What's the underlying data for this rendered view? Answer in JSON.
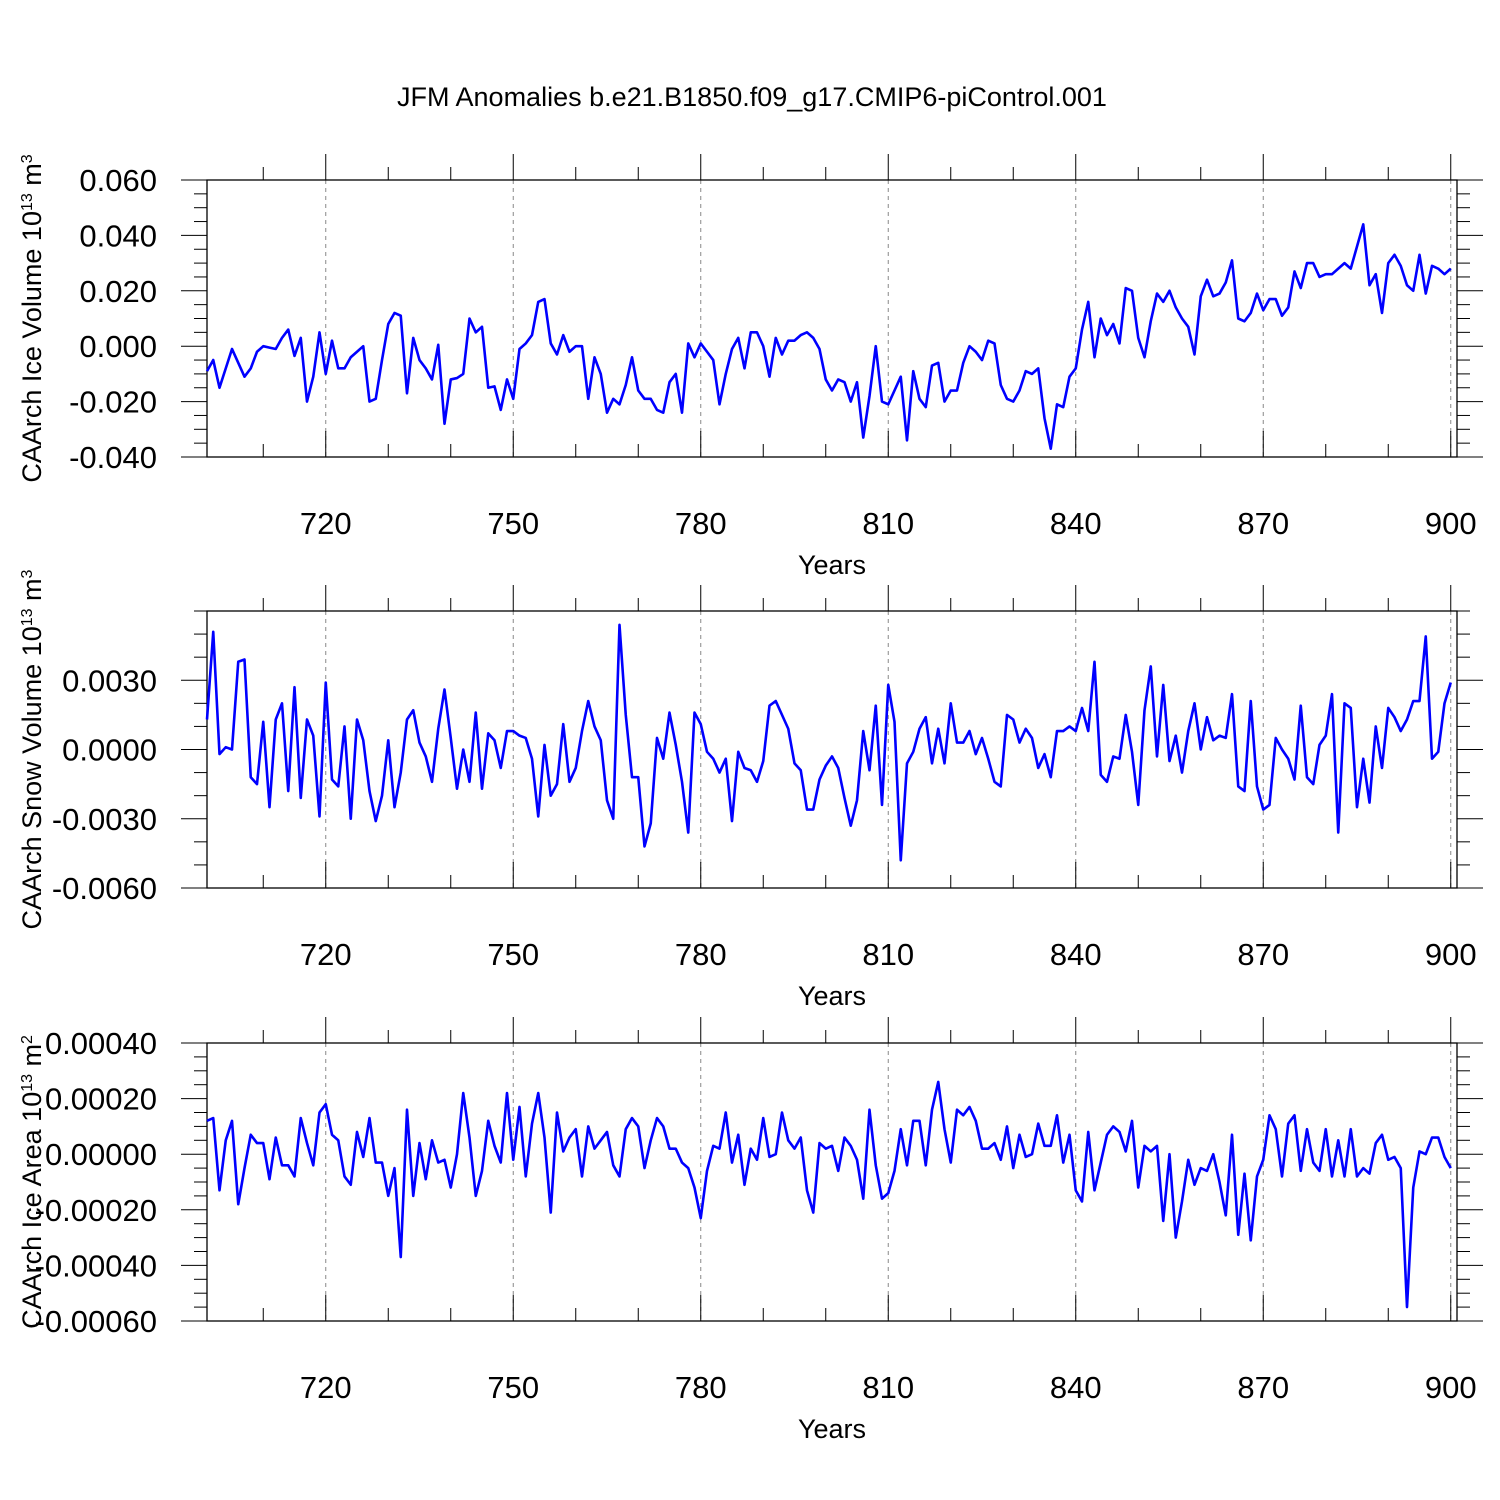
{
  "title": "JFM Anomalies b.e21.B1850.f09_g17.CMIP6-piControl.001",
  "line_color": "#0000ff",
  "grid_color": "#888888",
  "chart_data": [
    {
      "type": "line",
      "ylabel": "CAArch Ice Volume 10",
      "ylabel_sup": "13",
      "ylabel_unit": "m",
      "ylabel_unit_sup": "3",
      "xlabel": "Years",
      "xlim": [
        701,
        901
      ],
      "ylim": [
        -0.04,
        0.06
      ],
      "yticks": [
        -0.04,
        -0.02,
        0.0,
        0.02,
        0.04,
        0.06
      ],
      "ytick_labels": [
        "-0.040",
        "-0.020",
        "0.000",
        "0.020",
        "0.040",
        "0.060"
      ],
      "yminor_step": 0.005,
      "xticks": [
        720,
        750,
        780,
        810,
        840,
        870,
        900
      ],
      "xtick_labels": [
        "720",
        "750",
        "780",
        "810",
        "840",
        "870",
        "900"
      ],
      "xminor_step": 10,
      "x_start": 701,
      "values": [
        -0.009,
        -0.005,
        -0.015,
        -0.008,
        -0.001,
        -0.006,
        -0.011,
        -0.008,
        -0.002,
        0.0,
        -0.0005,
        -0.001,
        0.003,
        0.006,
        -0.0035,
        0.003,
        -0.02,
        -0.011,
        0.005,
        -0.01,
        0.002,
        -0.008,
        -0.008,
        -0.004,
        -0.002,
        0.0,
        -0.02,
        -0.019,
        -0.005,
        0.008,
        0.012,
        0.011,
        -0.017,
        0.003,
        -0.005,
        -0.008,
        -0.012,
        0.0005,
        -0.028,
        -0.012,
        -0.0115,
        -0.01,
        0.01,
        0.005,
        0.007,
        -0.015,
        -0.0145,
        -0.023,
        -0.012,
        -0.019,
        -0.001,
        0.001,
        0.004,
        0.016,
        0.017,
        0.001,
        -0.003,
        0.004,
        -0.002,
        0.0,
        0.0,
        -0.019,
        -0.004,
        -0.01,
        -0.024,
        -0.019,
        -0.021,
        -0.014,
        -0.004,
        -0.016,
        -0.019,
        -0.019,
        -0.023,
        -0.024,
        -0.013,
        -0.01,
        -0.024,
        0.001,
        -0.004,
        0.001,
        -0.002,
        -0.005,
        -0.021,
        -0.01,
        -0.001,
        0.003,
        -0.008,
        0.005,
        0.005,
        0.0,
        -0.011,
        0.003,
        -0.003,
        0.002,
        0.002,
        0.004,
        0.005,
        0.003,
        -0.001,
        -0.012,
        -0.016,
        -0.012,
        -0.013,
        -0.02,
        -0.013,
        -0.033,
        -0.018,
        0.0,
        -0.02,
        -0.021,
        -0.016,
        -0.011,
        -0.034,
        -0.009,
        -0.019,
        -0.022,
        -0.007,
        -0.006,
        -0.02,
        -0.016,
        -0.016,
        -0.006,
        0.0,
        -0.002,
        -0.005,
        0.002,
        0.001,
        -0.014,
        -0.019,
        -0.02,
        -0.016,
        -0.009,
        -0.01,
        -0.008,
        -0.026,
        -0.037,
        -0.021,
        -0.022,
        -0.011,
        -0.008,
        0.006,
        0.016,
        -0.004,
        0.01,
        0.004,
        0.008,
        0.001,
        0.021,
        0.02,
        0.003,
        -0.004,
        0.009,
        0.019,
        0.016,
        0.02,
        0.014,
        0.01,
        0.007,
        -0.003,
        0.018,
        0.024,
        0.018,
        0.019,
        0.023,
        0.031,
        0.01,
        0.009,
        0.012,
        0.019,
        0.013,
        0.017,
        0.017,
        0.011,
        0.014,
        0.027,
        0.021,
        0.03,
        0.03,
        0.025,
        0.026,
        0.026,
        0.028,
        0.03,
        0.028,
        0.036,
        0.044,
        0.022,
        0.026,
        0.012,
        0.03,
        0.033,
        0.029,
        0.022,
        0.02,
        0.033,
        0.019,
        0.029,
        0.028,
        0.026,
        0.028
      ]
    },
    {
      "type": "line",
      "ylabel": "CAArch Snow Volume 10",
      "ylabel_sup": "13",
      "ylabel_unit": "m",
      "ylabel_unit_sup": "3",
      "xlabel": "Years",
      "xlim": [
        701,
        901
      ],
      "ylim": [
        -0.006,
        0.006
      ],
      "yticks": [
        -0.006,
        -0.003,
        0.0,
        0.003
      ],
      "ytick_labels": [
        "-0.0060",
        "-0.0030",
        "0.0000",
        "0.0030"
      ],
      "yminor_step": 0.001,
      "xticks": [
        720,
        750,
        780,
        810,
        840,
        870,
        900
      ],
      "xtick_labels": [
        "720",
        "750",
        "780",
        "810",
        "840",
        "870",
        "900"
      ],
      "xminor_step": 10,
      "x_start": 701,
      "values": [
        0.0013,
        0.0051,
        -0.0002,
        0.0001,
        0.0,
        0.0038,
        0.0039,
        -0.0012,
        -0.0015,
        0.0012,
        -0.0025,
        0.0013,
        0.002,
        -0.0018,
        0.0027,
        -0.0021,
        0.0013,
        0.0006,
        -0.0029,
        0.0029,
        -0.0013,
        -0.0016,
        0.001,
        -0.003,
        0.0013,
        0.0004,
        -0.0018,
        -0.0031,
        -0.002,
        0.0004,
        -0.0025,
        -0.001,
        0.0013,
        0.0017,
        0.0003,
        -0.0003,
        -0.0014,
        0.0009,
        0.0026,
        0.0005,
        -0.0017,
        0.0,
        -0.0014,
        0.0016,
        -0.0017,
        0.0007,
        0.0004,
        -0.0008,
        0.0008,
        0.0008,
        0.0006,
        0.0005,
        -0.0004,
        -0.0029,
        0.0002,
        -0.002,
        -0.0015,
        0.0011,
        -0.0014,
        -0.0008,
        0.0008,
        0.0021,
        0.001,
        0.0004,
        -0.0022,
        -0.003,
        0.0054,
        0.0015,
        -0.0012,
        -0.0012,
        -0.0042,
        -0.0032,
        0.0005,
        -0.0004,
        0.0016,
        0.0002,
        -0.0014,
        -0.0036,
        0.0016,
        0.0011,
        -0.0001,
        -0.0004,
        -0.001,
        -0.0004,
        -0.0031,
        -0.0001,
        -0.0008,
        -0.0009,
        -0.0014,
        -0.0005,
        0.0019,
        0.0021,
        0.0015,
        0.0009,
        -0.0006,
        -0.0009,
        -0.0026,
        -0.0026,
        -0.0013,
        -0.0007,
        -0.0003,
        -0.0008,
        -0.0021,
        -0.0033,
        -0.0022,
        0.0008,
        -0.0009,
        0.0019,
        -0.0024,
        0.0028,
        0.0012,
        -0.0048,
        -0.0006,
        -0.0001,
        0.0009,
        0.0014,
        -0.0006,
        0.0009,
        -0.0006,
        0.002,
        0.0003,
        0.0003,
        0.0008,
        -0.0002,
        0.0005,
        -0.0004,
        -0.0014,
        -0.0016,
        0.0015,
        0.0013,
        0.0003,
        0.0009,
        0.0005,
        -0.0008,
        -0.0002,
        -0.0012,
        0.0008,
        0.0008,
        0.001,
        0.0008,
        0.0018,
        0.0008,
        0.0038,
        -0.0011,
        -0.0014,
        -0.0003,
        -0.0004,
        0.0015,
        -0.0001,
        -0.0024,
        0.0017,
        0.0036,
        -0.0003,
        0.0028,
        -0.0005,
        0.0006,
        -0.001,
        0.0008,
        0.002,
        0.0,
        0.0014,
        0.0004,
        0.0006,
        0.0005,
        0.0024,
        -0.0016,
        -0.0018,
        0.0021,
        -0.0016,
        -0.0026,
        -0.0024,
        0.0005,
        0.0,
        -0.0004,
        -0.0013,
        0.0019,
        -0.0012,
        -0.0015,
        0.0002,
        0.0006,
        0.0024,
        -0.0036,
        0.002,
        0.0018,
        -0.0025,
        -0.0004,
        -0.0023,
        0.001,
        -0.0008,
        0.0018,
        0.0014,
        0.0008,
        0.0013,
        0.0021,
        0.0021,
        0.0049,
        -0.0004,
        -0.0001,
        0.002,
        0.0029
      ]
    },
    {
      "type": "line",
      "ylabel": "CAArch Ice Area 10",
      "ylabel_sup": "13",
      "ylabel_unit": "m",
      "ylabel_unit_sup": "2",
      "xlabel": "Years",
      "xlim": [
        701,
        901
      ],
      "ylim": [
        -0.0006,
        0.0004
      ],
      "yticks": [
        -0.0006,
        -0.0004,
        -0.0002,
        0.0,
        0.0002,
        0.0004
      ],
      "ytick_labels": [
        "-0.00060",
        "-0.00040",
        "-0.00020",
        "0.00000",
        "0.00020",
        "0.00040"
      ],
      "yminor_step": 5e-05,
      "xticks": [
        720,
        750,
        780,
        810,
        840,
        870,
        900
      ],
      "xtick_labels": [
        "720",
        "750",
        "780",
        "810",
        "840",
        "870",
        "900"
      ],
      "xminor_step": 10,
      "x_start": 701,
      "values": [
        0.00012,
        0.00013,
        -0.00013,
        5e-05,
        0.00012,
        -0.00018,
        -5e-05,
        7e-05,
        4e-05,
        4e-05,
        -9e-05,
        6e-05,
        -4e-05,
        -4e-05,
        -8e-05,
        0.00013,
        4e-05,
        -4e-05,
        0.00015,
        0.00018,
        7e-05,
        5e-05,
        -8e-05,
        -0.00011,
        8e-05,
        -1e-05,
        0.00013,
        -3e-05,
        -3e-05,
        -0.00015,
        -5e-05,
        -0.00037,
        0.00016,
        -0.00015,
        4e-05,
        -9e-05,
        5e-05,
        -3e-05,
        -2e-05,
        -0.00012,
        0.0,
        0.00022,
        6e-05,
        -0.00015,
        -6e-05,
        0.00012,
        3e-05,
        -3e-05,
        0.00022,
        -2e-05,
        0.00017,
        -8e-05,
        0.00011,
        0.00022,
        6e-05,
        -0.00021,
        0.00015,
        1e-05,
        6e-05,
        9e-05,
        -8e-05,
        0.0001,
        2e-05,
        5e-05,
        8e-05,
        -4e-05,
        -8e-05,
        9e-05,
        0.00013,
        0.0001,
        -5e-05,
        5e-05,
        0.00013,
        0.0001,
        2e-05,
        2e-05,
        -3e-05,
        -5e-05,
        -0.00012,
        -0.00023,
        -6e-05,
        3e-05,
        2e-05,
        0.00015,
        -3e-05,
        7e-05,
        -0.00011,
        2e-05,
        -2e-05,
        0.00013,
        -1e-05,
        0.0,
        0.00015,
        5e-05,
        2e-05,
        6e-05,
        -0.00013,
        -0.00021,
        4e-05,
        2e-05,
        3e-05,
        -6e-05,
        6e-05,
        3e-05,
        -2e-05,
        -0.00016,
        0.00016,
        -4e-05,
        -0.00016,
        -0.00014,
        -6e-05,
        9e-05,
        -4e-05,
        0.00012,
        0.00012,
        -4e-05,
        0.00016,
        0.00026,
        9e-05,
        -3e-05,
        0.00016,
        0.00014,
        0.00017,
        0.00012,
        2e-05,
        2e-05,
        4e-05,
        -2e-05,
        0.0001,
        -5e-05,
        7e-05,
        -1e-05,
        0.0,
        0.00011,
        3e-05,
        3e-05,
        0.00014,
        -3e-05,
        7e-05,
        -0.00013,
        -0.00017,
        8e-05,
        -0.00013,
        -3e-05,
        7e-05,
        0.0001,
        8e-05,
        1e-05,
        0.00012,
        -0.00012,
        3e-05,
        1e-05,
        3e-05,
        -0.00024,
        0.0,
        -0.0003,
        -0.00017,
        -2e-05,
        -0.00011,
        -5e-05,
        -6e-05,
        0.0,
        -0.0001,
        -0.00022,
        7e-05,
        -0.00029,
        -7e-05,
        -0.00031,
        -8e-05,
        -2e-05,
        0.00014,
        9e-05,
        -8e-05,
        0.00011,
        0.00014,
        -6e-05,
        9e-05,
        -3e-05,
        -6e-05,
        9e-05,
        -8e-05,
        5e-05,
        -8e-05,
        9e-05,
        -8e-05,
        -5e-05,
        -7e-05,
        4e-05,
        7e-05,
        -2e-05,
        -1e-05,
        -5e-05,
        -0.00055,
        -0.00012,
        1e-05,
        0.0,
        6e-05,
        6e-05,
        -1e-05,
        -5e-05
      ]
    }
  ]
}
